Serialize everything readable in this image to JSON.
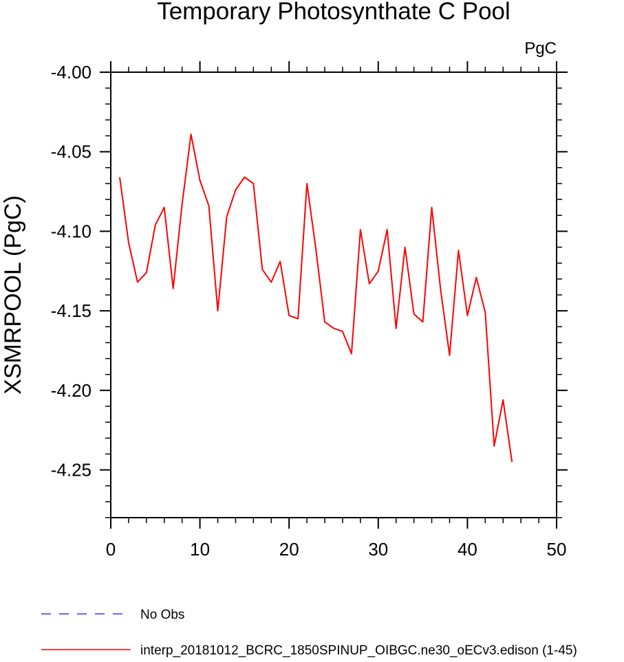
{
  "chart_data": {
    "type": "line",
    "title": "Temporary Photosynthate C Pool",
    "units": "PgC",
    "ylabel": "XSMRPOOL  (PgC)",
    "xlabel": "",
    "xlim": [
      0,
      50
    ],
    "ylim": [
      -4.28,
      -4.0
    ],
    "xticks": [
      0,
      10,
      20,
      30,
      40,
      50
    ],
    "xticklabels": [
      "0",
      "10",
      "20",
      "30",
      "40",
      "50"
    ],
    "yticks": [
      -4.0,
      -4.05,
      -4.1,
      -4.15,
      -4.2,
      -4.25
    ],
    "yticklabels": [
      "-4.00",
      "-4.05",
      "-4.10",
      "-4.15",
      "-4.20",
      "-4.25"
    ],
    "grid": false,
    "legend_position": "bottom-left",
    "series": [
      {
        "name": "No Obs",
        "color": "#3333ff",
        "dash": "dashed",
        "x": [],
        "y": []
      },
      {
        "name": "interp_20181012_BCRC_1850SPINUP_OIBGC.ne30_oECv3.edison (1-45)",
        "color": "#ff0000",
        "dash": "solid",
        "x": [
          1,
          2,
          3,
          4,
          5,
          6,
          7,
          8,
          9,
          10,
          11,
          12,
          13,
          14,
          15,
          16,
          17,
          18,
          19,
          20,
          21,
          22,
          23,
          24,
          25,
          26,
          27,
          28,
          29,
          30,
          31,
          32,
          33,
          34,
          35,
          36,
          37,
          38,
          39,
          40,
          41,
          42,
          43,
          44,
          45
        ],
        "y": [
          -4.066,
          -4.107,
          -4.132,
          -4.126,
          -4.096,
          -4.085,
          -4.136,
          -4.083,
          -4.039,
          -4.068,
          -4.084,
          -4.15,
          -4.091,
          -4.074,
          -4.066,
          -4.07,
          -4.124,
          -4.132,
          -4.119,
          -4.153,
          -4.155,
          -4.07,
          -4.111,
          -4.157,
          -4.161,
          -4.163,
          -4.177,
          -4.099,
          -4.133,
          -4.125,
          -4.099,
          -4.161,
          -4.11,
          -4.152,
          -4.157,
          -4.085,
          -4.137,
          -4.178,
          -4.112,
          -4.153,
          -4.129,
          -4.151,
          -4.235,
          -4.206,
          -4.245
        ]
      }
    ]
  }
}
